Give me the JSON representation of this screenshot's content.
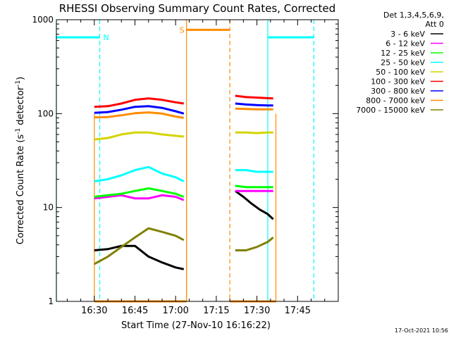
{
  "chart_data": {
    "type": "line",
    "title": "RHESSI Observing Summary Count Rates, Corrected",
    "xlabel": "Start Time (27-Nov-10 16:16:22)",
    "ylabel_main": "Corrected Count Rate (s",
    "ylabel_sup1": "-1",
    "ylabel_mid": " detector",
    "ylabel_sup2": "-1",
    "ylabel_end": ")",
    "y_scale": "log",
    "ylim": [
      1,
      1000
    ],
    "xlim": [
      "16:16",
      "18:00"
    ],
    "y_ticks": [
      "1",
      "10",
      "100",
      "1000"
    ],
    "x_ticks": [
      "16:30",
      "16:45",
      "17:00",
      "17:15",
      "17:30",
      "17:45"
    ],
    "timestamp": "17-Oct-2021 10:56",
    "legend": {
      "header1": "Det 1,3,4,5,6,9,",
      "header2": "Att 0",
      "placement": "right"
    },
    "series": [
      {
        "name": "3 - 6 keV",
        "color": "#000000",
        "segments": [
          {
            "x": [
              "16:30",
              "16:35",
              "16:40",
              "16:45",
              "16:50",
              "16:55",
              "17:00",
              "17:03"
            ],
            "y": [
              3.5,
              3.6,
              3.9,
              3.9,
              3.0,
              2.6,
              2.3,
              2.2
            ]
          },
          {
            "x": [
              "17:22",
              "17:25",
              "17:28",
              "17:31",
              "17:34",
              "17:36"
            ],
            "y": [
              15,
              13,
              11,
              9.5,
              8.5,
              7.5
            ]
          }
        ]
      },
      {
        "name": "6 - 12 keV",
        "color": "#ff00ff",
        "segments": [
          {
            "x": [
              "16:30",
              "16:35",
              "16:40",
              "16:45",
              "16:50",
              "16:55",
              "17:00",
              "17:03"
            ],
            "y": [
              12.5,
              13,
              13.5,
              12.5,
              12.5,
              13.5,
              13,
              12
            ]
          },
          {
            "x": [
              "17:22",
              "17:26",
              "17:30",
              "17:34",
              "17:36"
            ],
            "y": [
              15,
              15,
              15,
              15,
              15
            ]
          }
        ]
      },
      {
        "name": "12 - 25 keV",
        "color": "#00ff00",
        "segments": [
          {
            "x": [
              "16:30",
              "16:35",
              "16:40",
              "16:45",
              "16:50",
              "16:55",
              "17:00",
              "17:03"
            ],
            "y": [
              13,
              13.5,
              14,
              15,
              16,
              15,
              14,
              13
            ]
          },
          {
            "x": [
              "17:22",
              "17:26",
              "17:30",
              "17:34",
              "17:36"
            ],
            "y": [
              17,
              16.5,
              16.5,
              16.5,
              16.5
            ]
          }
        ]
      },
      {
        "name": "25 - 50 keV",
        "color": "#00ffff",
        "segments": [
          {
            "x": [
              "16:30",
              "16:35",
              "16:40",
              "16:45",
              "16:50",
              "16:55",
              "17:00",
              "17:03"
            ],
            "y": [
              19,
              20,
              22,
              25,
              27,
              23,
              21,
              19
            ]
          },
          {
            "x": [
              "17:22",
              "17:26",
              "17:30",
              "17:34",
              "17:36"
            ],
            "y": [
              25,
              25,
              24,
              24,
              24
            ]
          }
        ]
      },
      {
        "name": "50 - 100 keV",
        "color": "#d4d400",
        "segments": [
          {
            "x": [
              "16:30",
              "16:35",
              "16:40",
              "16:45",
              "16:50",
              "16:55",
              "17:00",
              "17:03"
            ],
            "y": [
              53,
              55,
              60,
              63,
              63,
              60,
              58,
              57
            ]
          },
          {
            "x": [
              "17:22",
              "17:26",
              "17:30",
              "17:34",
              "17:36"
            ],
            "y": [
              63,
              63,
              62,
              63,
              63
            ]
          }
        ]
      },
      {
        "name": "100 - 300 keV",
        "color": "#ff0000",
        "segments": [
          {
            "x": [
              "16:30",
              "16:35",
              "16:40",
              "16:45",
              "16:50",
              "16:55",
              "17:00",
              "17:03"
            ],
            "y": [
              118,
              120,
              128,
              140,
              145,
              140,
              132,
              128
            ]
          },
          {
            "x": [
              "17:22",
              "17:26",
              "17:30",
              "17:34",
              "17:36"
            ],
            "y": [
              155,
              150,
              148,
              146,
              145
            ]
          }
        ]
      },
      {
        "name": "300 - 800 keV",
        "color": "#0000ff",
        "segments": [
          {
            "x": [
              "16:30",
              "16:35",
              "16:40",
              "16:45",
              "16:50",
              "16:55",
              "17:00",
              "17:03"
            ],
            "y": [
              102,
              104,
              110,
              118,
              120,
              115,
              106,
              100
            ]
          },
          {
            "x": [
              "17:22",
              "17:26",
              "17:30",
              "17:34",
              "17:36"
            ],
            "y": [
              128,
              125,
              123,
              122,
              122
            ]
          }
        ]
      },
      {
        "name": "800 - 7000 keV",
        "color": "#ff8c00",
        "segments": [
          {
            "x": [
              "16:30",
              "16:35",
              "16:40",
              "16:45",
              "16:50",
              "16:55",
              "17:00",
              "17:03"
            ],
            "y": [
              91,
              92,
              96,
              101,
              103,
              100,
              93,
              90
            ]
          },
          {
            "x": [
              "17:22",
              "17:26",
              "17:30",
              "17:34",
              "17:36"
            ],
            "y": [
              113,
              112,
              111,
              111,
              111
            ]
          }
        ]
      },
      {
        "name": "7000 - 15000 keV",
        "color": "#808000",
        "segments": [
          {
            "x": [
              "16:30",
              "16:35",
              "16:40",
              "16:45",
              "16:50",
              "16:55",
              "17:00",
              "17:03"
            ],
            "y": [
              2.5,
              3.0,
              3.8,
              4.8,
              6.0,
              5.5,
              5.0,
              4.5
            ]
          },
          {
            "x": [
              "17:22",
              "17:26",
              "17:30",
              "17:34",
              "17:36"
            ],
            "y": [
              3.5,
              3.5,
              3.8,
              4.3,
              4.8
            ]
          }
        ]
      }
    ],
    "annotations": {
      "orange_bars": [
        {
          "start": "16:30",
          "end": "17:04",
          "y": 1
        },
        {
          "start": "17:04",
          "end": "17:20",
          "y": 780,
          "label": "S"
        },
        {
          "start": "17:20",
          "end": "17:37",
          "y": 1
        }
      ],
      "cyan_bars": [
        {
          "start": "16:16",
          "end": "16:32",
          "y": 650,
          "label": "N"
        },
        {
          "start": "17:34",
          "end": "17:51",
          "y": 650
        }
      ],
      "cyan_solid_x": [
        "16:16",
        "17:34"
      ],
      "cyan_dashed_x": [
        "16:32",
        "17:51"
      ],
      "orange_dashed_x": [
        "17:20"
      ],
      "orange_solid_x": [
        "16:30",
        "17:04",
        "17:37"
      ]
    }
  }
}
